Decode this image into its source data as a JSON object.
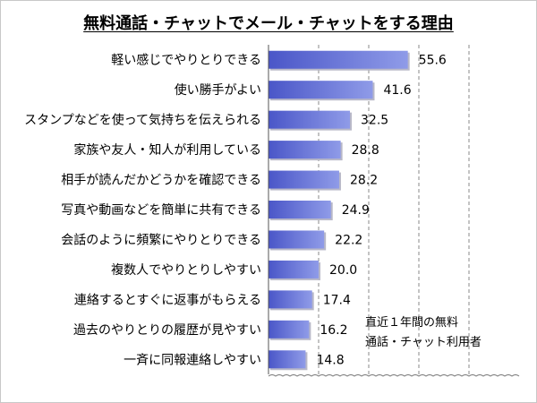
{
  "chart_data": {
    "type": "bar",
    "orientation": "horizontal",
    "title": "無料通話・チャットでメール・チャットをする理由",
    "categories": [
      "軽い感じでやりとりできる",
      "使い勝手がよい",
      "スタンプなどを使って気持ちを伝えられる",
      "家族や友人・知人が利用している",
      "相手が読んだかどうかを確認できる",
      "写真や動画などを簡単に共有できる",
      "会話のように頻繁にやりとりできる",
      "複数人でやりとりしやすい",
      "連絡するとすぐに返事がもらえる",
      "過去のやりとりの履歴が見やすい",
      "一斉に同報連絡しやすい"
    ],
    "values": [
      55.6,
      41.6,
      32.5,
      28.8,
      28.2,
      24.9,
      22.2,
      20.0,
      17.4,
      16.2,
      14.8
    ],
    "value_labels": [
      "55.6",
      "41.6",
      "32.5",
      "28.8",
      "28.2",
      "24.9",
      "22.2",
      "20.0",
      "17.4",
      "16.2",
      "14.8"
    ],
    "xlim": [
      0,
      100
    ],
    "grid": "vertical-dashed",
    "gridlines_at": [
      20,
      40,
      60,
      80
    ],
    "annotation": [
      "直近１年間の無料",
      "通話・チャット利用者"
    ],
    "bar_color": "#4a56c8",
    "bar_gradient_light": "#8f9be8"
  }
}
